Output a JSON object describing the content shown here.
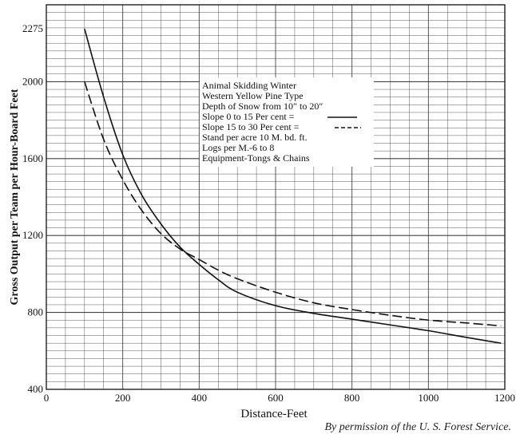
{
  "chart_data": {
    "type": "line",
    "title": "",
    "xlabel": "Distance-Feet",
    "ylabel": "Gross Output per Team per Hour-Board Feet",
    "xlim": [
      0,
      1200
    ],
    "ylim": [
      400,
      2400
    ],
    "x_ticks": [
      0,
      200,
      400,
      600,
      800,
      1000,
      1200
    ],
    "y_ticks": [
      400,
      800,
      1200,
      1600,
      2000,
      2275
    ],
    "grid": true,
    "annotation_lines": [
      "Animal Skidding    Winter",
      "Western Yellow Pine Type",
      "Depth of Snow from 10″ to 20″",
      "Slope 0 to 15 Per cent =",
      "Slope 15 to 30 Per cent =",
      "Stand per acre 10 M. bd. ft.",
      "Logs per M.-6 to 8",
      "Equipment-Tongs & Chains"
    ],
    "series": [
      {
        "style": "solid",
        "x": [
          100,
          150,
          200,
          250,
          300,
          350,
          400,
          450,
          500,
          600,
          700,
          800,
          900,
          1000,
          1100,
          1190
        ],
        "y": [
          2275,
          1920,
          1620,
          1410,
          1260,
          1140,
          1050,
          970,
          905,
          835,
          795,
          765,
          735,
          705,
          670,
          640
        ]
      },
      {
        "style": "dashed",
        "x": [
          100,
          150,
          200,
          250,
          300,
          350,
          400,
          450,
          500,
          600,
          700,
          800,
          900,
          1000,
          1100,
          1190
        ],
        "y": [
          2000,
          1700,
          1490,
          1330,
          1210,
          1130,
          1075,
          1020,
          975,
          905,
          850,
          815,
          785,
          760,
          745,
          730
        ]
      }
    ]
  },
  "credit": "By permission of the U. S. Forest Service."
}
